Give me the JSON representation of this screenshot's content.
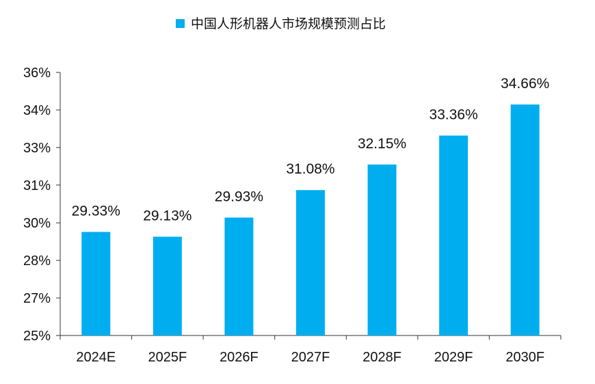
{
  "chart_data": {
    "type": "bar",
    "title": "",
    "legend": {
      "entries": [
        "中国人形机器人市场规模预测占比"
      ],
      "position": "top"
    },
    "categories": [
      "2024E",
      "2025F",
      "2026F",
      "2027F",
      "2028F",
      "2029F",
      "2030F"
    ],
    "series": [
      {
        "name": "中国人形机器人市场规模预测占比",
        "values": [
          29.33,
          29.13,
          29.93,
          31.08,
          32.15,
          33.36,
          34.66
        ],
        "color": "#00AEEF"
      }
    ],
    "data_labels": [
      "29.33%",
      "29.13%",
      "29.93%",
      "31.08%",
      "32.15%",
      "33.36%",
      "34.66%"
    ],
    "ylim": [
      25,
      36
    ],
    "y_ticks": [
      25,
      26.57,
      28.14,
      29.71,
      31.29,
      32.86,
      34.43,
      36
    ],
    "y_tick_labels": [
      "25%",
      "27%",
      "28%",
      "30%",
      "31%",
      "33%",
      "34%",
      "36%"
    ],
    "xlabel": "",
    "ylabel": "",
    "grid": false
  }
}
